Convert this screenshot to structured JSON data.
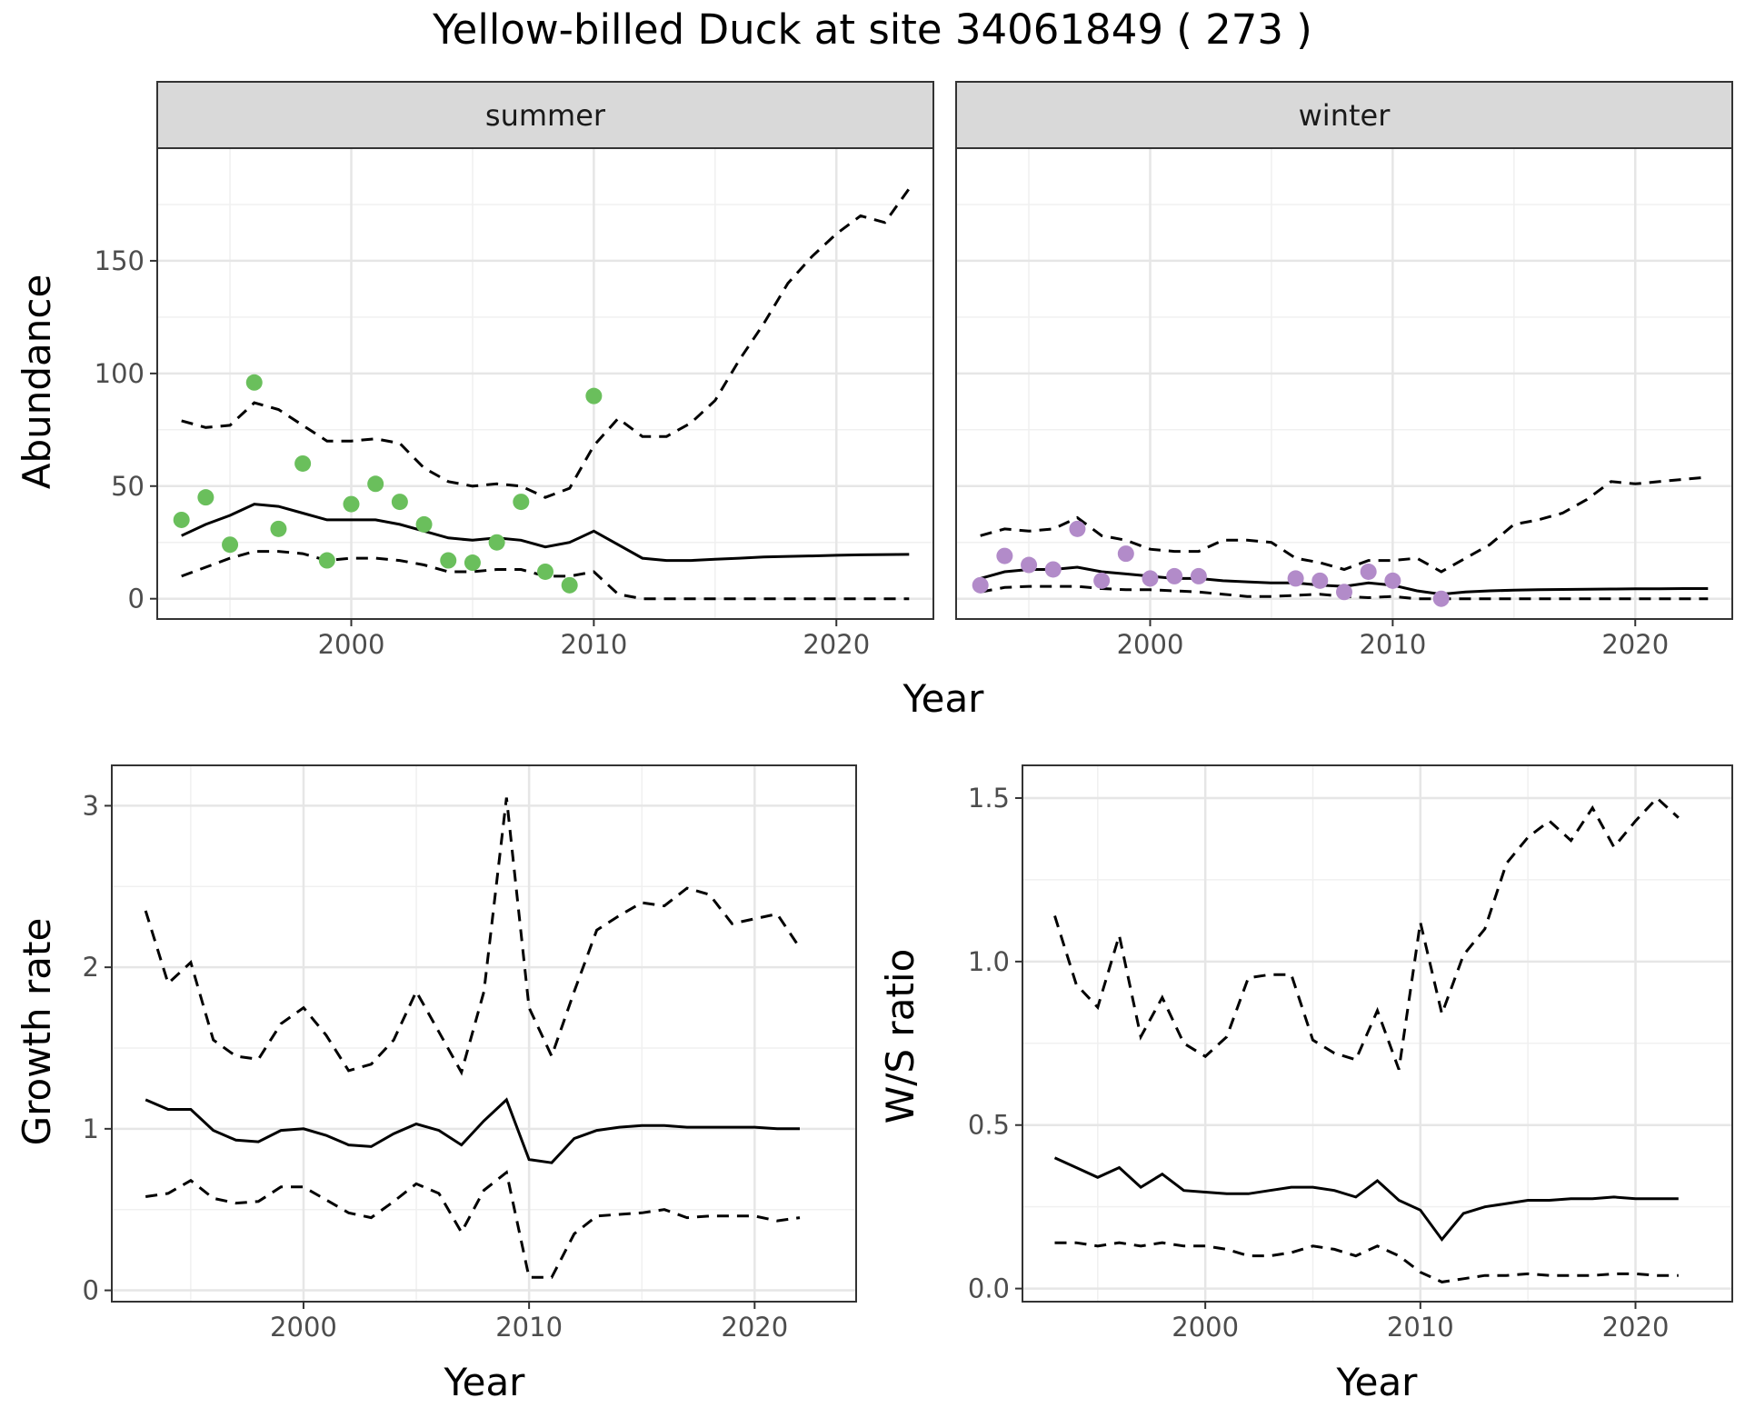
{
  "figure": {
    "title": "Yellow-billed Duck at site 34061849 ( 273 )"
  },
  "chart_data": [
    {
      "type": "line",
      "panel": "abundance",
      "facets": [
        "summer",
        "winter"
      ],
      "xlabel": "Year",
      "ylabel": "Abundance",
      "xlim": [
        1992,
        2024
      ],
      "ylim": [
        -9,
        200
      ],
      "xticks": [
        2000,
        2010,
        2020
      ],
      "yticks": [
        0,
        50,
        100,
        150
      ],
      "grid": true,
      "legend": "none",
      "colors": {
        "summer": "#6abf5c",
        "winter": "#b28bc9",
        "line": "#000000"
      },
      "x": [
        1993,
        1994,
        1995,
        1996,
        1997,
        1998,
        1999,
        2000,
        2001,
        2002,
        2003,
        2004,
        2005,
        2006,
        2007,
        2008,
        2009,
        2010,
        2011,
        2012,
        2013,
        2014,
        2015,
        2016,
        2017,
        2018,
        2019,
        2020,
        2021,
        2022,
        2023
      ],
      "summer": {
        "fit": [
          28,
          33,
          37,
          42,
          41,
          38,
          35,
          35,
          35,
          33,
          30,
          27,
          26,
          27,
          26,
          23,
          25,
          30,
          24,
          18,
          17,
          17,
          17.5,
          18,
          18.5,
          18.8,
          19,
          19.3,
          19.5,
          19.6,
          19.7
        ],
        "upper": [
          79,
          76,
          77,
          87,
          84,
          77,
          70,
          70,
          71,
          69,
          58,
          52,
          50,
          51,
          50,
          45,
          49,
          68,
          80,
          72,
          72,
          78,
          88,
          106,
          122,
          140,
          152,
          162,
          170,
          167,
          182
        ],
        "lower": [
          10,
          14,
          18,
          21,
          21,
          20,
          17,
          18,
          18,
          17,
          15,
          12,
          12,
          13,
          13,
          10,
          10,
          12,
          2,
          0,
          0,
          0,
          0,
          0,
          0,
          0,
          0,
          0,
          0,
          0,
          0
        ],
        "points_x": [
          1993,
          1994,
          1995,
          1996,
          1997,
          1998,
          1999,
          2000,
          2001,
          2002,
          2003,
          2004,
          2005,
          2006,
          2007,
          2008,
          2009,
          2010
        ],
        "points_y": [
          35,
          45,
          24,
          96,
          31,
          60,
          17,
          42,
          51,
          43,
          33,
          17,
          16,
          25,
          43,
          12,
          6,
          90
        ]
      },
      "winter": {
        "fit": [
          9,
          12,
          13,
          13,
          14,
          12,
          11,
          10,
          9,
          9,
          8,
          7.5,
          7,
          7,
          6,
          5.5,
          7,
          6,
          3.5,
          2,
          3,
          3.5,
          3.8,
          4,
          4.1,
          4.2,
          4.3,
          4.4,
          4.4,
          4.5,
          4.5
        ],
        "upper": [
          28,
          31,
          30,
          31,
          36,
          28,
          26,
          22,
          21,
          21,
          26,
          26,
          25,
          18,
          16,
          13,
          17,
          17,
          18,
          12,
          18,
          24,
          33,
          35,
          38,
          44,
          52,
          51,
          52,
          53,
          54
        ],
        "lower": [
          3,
          5,
          5.5,
          5.5,
          5.5,
          4.5,
          4,
          4,
          3.5,
          3,
          2,
          1,
          1,
          1.5,
          2,
          1,
          0.5,
          1,
          0,
          0,
          0,
          0,
          0,
          0,
          0,
          0,
          0,
          0,
          0,
          0,
          0
        ],
        "points_x": [
          1993,
          1994,
          1995,
          1996,
          1997,
          1998,
          1999,
          2000,
          2001,
          2002,
          2006,
          2007,
          2008,
          2009,
          2010,
          2012
        ],
        "points_y": [
          6,
          19,
          15,
          13,
          31,
          8,
          20,
          9,
          10,
          10,
          9,
          8,
          3,
          12,
          8,
          0
        ]
      }
    },
    {
      "type": "line",
      "panel": "growth",
      "xlabel": "Year",
      "ylabel": "Growth rate",
      "xlim": [
        1991.5,
        2024.5
      ],
      "ylim": [
        -0.07,
        3.25
      ],
      "xticks": [
        2000,
        2010,
        2020
      ],
      "yticks": [
        0,
        1,
        2,
        3
      ],
      "grid": true,
      "x": [
        1993,
        1994,
        1995,
        1996,
        1997,
        1998,
        1999,
        2000,
        2001,
        2002,
        2003,
        2004,
        2005,
        2006,
        2007,
        2008,
        2009,
        2010,
        2011,
        2012,
        2013,
        2014,
        2015,
        2016,
        2017,
        2018,
        2019,
        2020,
        2021,
        2022
      ],
      "fit": [
        1.18,
        1.12,
        1.12,
        0.99,
        0.93,
        0.92,
        0.99,
        1.0,
        0.96,
        0.9,
        0.89,
        0.97,
        1.03,
        0.99,
        0.9,
        1.05,
        1.18,
        0.81,
        0.79,
        0.94,
        0.99,
        1.01,
        1.02,
        1.02,
        1.01,
        1.01,
        1.01,
        1.01,
        1.0,
        1.0
      ],
      "upper": [
        2.35,
        1.9,
        2.03,
        1.55,
        1.45,
        1.43,
        1.65,
        1.75,
        1.58,
        1.36,
        1.4,
        1.55,
        1.85,
        1.6,
        1.35,
        1.85,
        3.05,
        1.75,
        1.45,
        1.85,
        2.23,
        2.32,
        2.4,
        2.38,
        2.49,
        2.45,
        2.27,
        2.3,
        2.33,
        2.12
      ],
      "lower": [
        0.58,
        0.6,
        0.68,
        0.57,
        0.54,
        0.55,
        0.64,
        0.64,
        0.56,
        0.48,
        0.45,
        0.55,
        0.66,
        0.6,
        0.36,
        0.62,
        0.73,
        0.08,
        0.08,
        0.35,
        0.46,
        0.47,
        0.48,
        0.5,
        0.45,
        0.46,
        0.46,
        0.46,
        0.43,
        0.45
      ]
    },
    {
      "type": "line",
      "panel": "ratio",
      "xlabel": "Year",
      "ylabel": "W/S ratio",
      "xlim": [
        1991.5,
        2024.5
      ],
      "ylim": [
        -0.04,
        1.6
      ],
      "xticks": [
        2000,
        2010,
        2020
      ],
      "yticks": [
        0.0,
        0.5,
        1.0,
        1.5
      ],
      "ytick_labels": [
        "0.0",
        "0.5",
        "1.0",
        "1.5"
      ],
      "grid": true,
      "x": [
        1993,
        1994,
        1995,
        1996,
        1997,
        1998,
        1999,
        2000,
        2001,
        2002,
        2003,
        2004,
        2005,
        2006,
        2007,
        2008,
        2009,
        2010,
        2011,
        2012,
        2013,
        2014,
        2015,
        2016,
        2017,
        2018,
        2019,
        2020,
        2021,
        2022
      ],
      "fit": [
        0.4,
        0.37,
        0.34,
        0.37,
        0.31,
        0.35,
        0.3,
        0.295,
        0.29,
        0.29,
        0.3,
        0.31,
        0.31,
        0.3,
        0.28,
        0.33,
        0.27,
        0.24,
        0.15,
        0.23,
        0.25,
        0.26,
        0.27,
        0.27,
        0.275,
        0.275,
        0.28,
        0.275,
        0.275,
        0.275
      ],
      "upper": [
        1.14,
        0.93,
        0.86,
        1.08,
        0.77,
        0.89,
        0.75,
        0.71,
        0.77,
        0.95,
        0.96,
        0.96,
        0.76,
        0.72,
        0.7,
        0.85,
        0.67,
        1.12,
        0.84,
        1.02,
        1.1,
        1.3,
        1.38,
        1.43,
        1.37,
        1.47,
        1.35,
        1.43,
        1.5,
        1.44
      ],
      "lower": [
        0.14,
        0.14,
        0.13,
        0.14,
        0.13,
        0.14,
        0.13,
        0.13,
        0.12,
        0.1,
        0.1,
        0.11,
        0.13,
        0.12,
        0.1,
        0.13,
        0.1,
        0.05,
        0.02,
        0.03,
        0.04,
        0.04,
        0.045,
        0.04,
        0.04,
        0.04,
        0.045,
        0.045,
        0.04,
        0.04
      ]
    }
  ]
}
